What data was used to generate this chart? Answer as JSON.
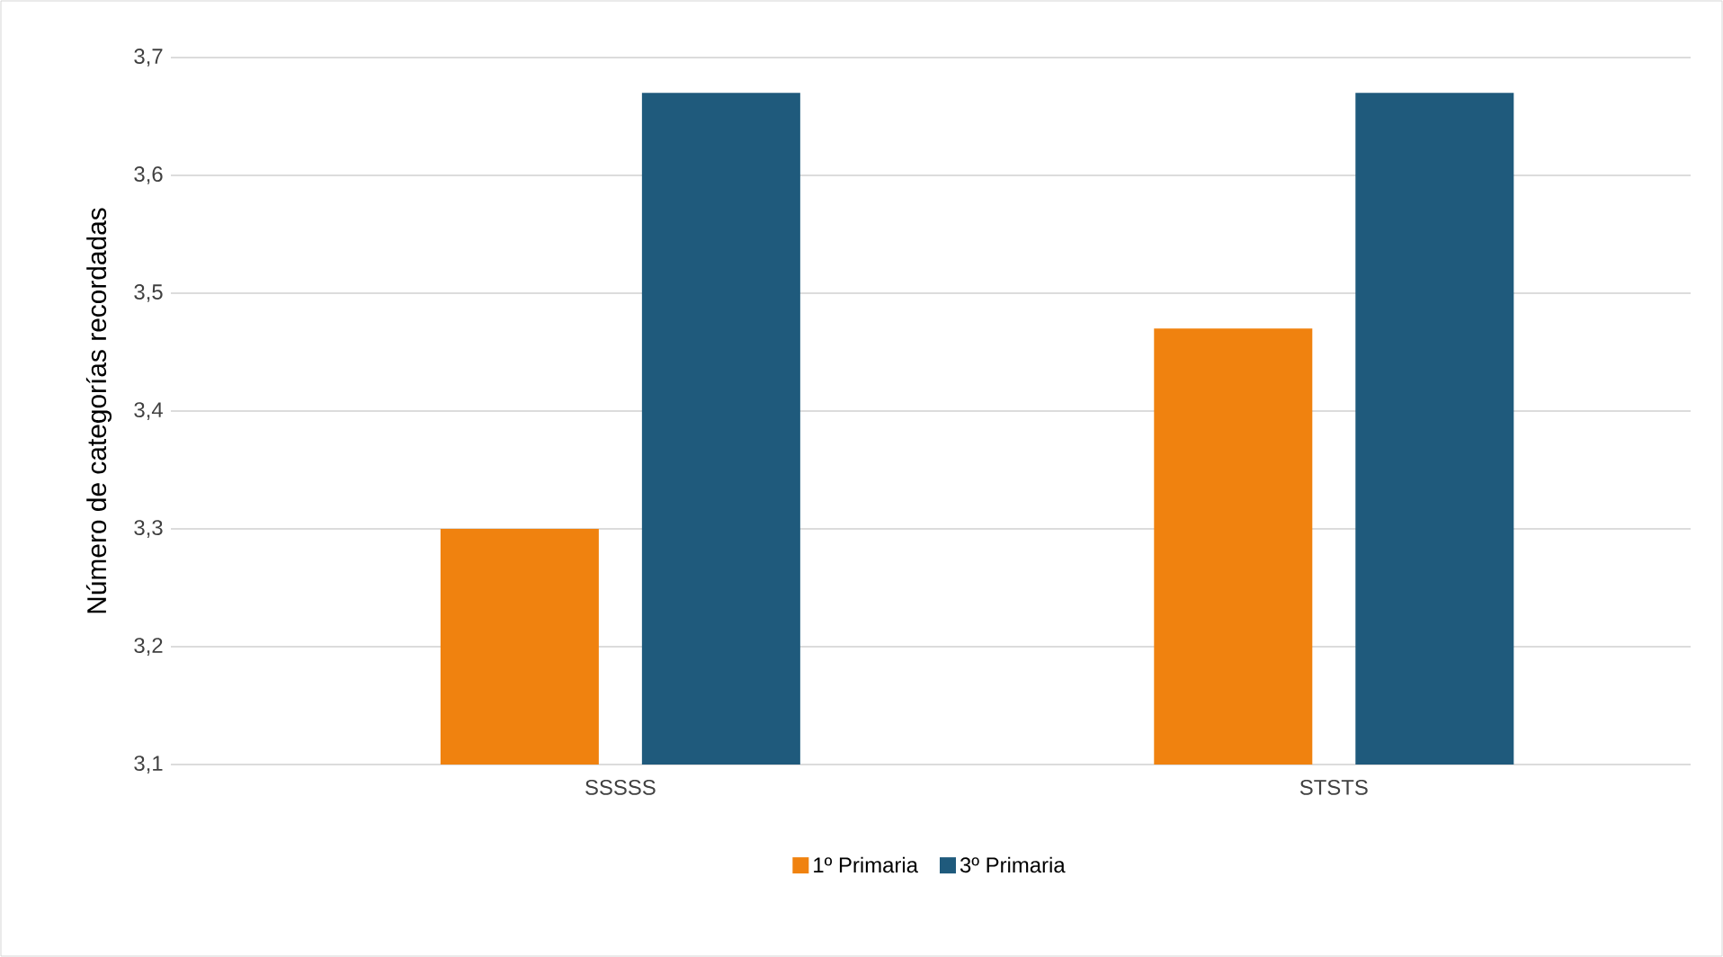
{
  "chart_data": {
    "type": "bar",
    "ylabel": "Número de categorías recordadas",
    "categories": [
      "SSSSS",
      "STSTS"
    ],
    "series": [
      {
        "name": "1º Primaria",
        "color": "#f0820f",
        "values": [
          3.3,
          3.47
        ]
      },
      {
        "name": "3º Primaria",
        "color": "#1f5a7c",
        "values": [
          3.67,
          3.67
        ]
      }
    ],
    "ylim": [
      3.1,
      3.7
    ],
    "yticks": [
      {
        "value": 3.1,
        "label": "3,1"
      },
      {
        "value": 3.2,
        "label": "3,2"
      },
      {
        "value": 3.3,
        "label": "3,3"
      },
      {
        "value": 3.4,
        "label": "3,4"
      },
      {
        "value": 3.5,
        "label": "3,5"
      },
      {
        "value": 3.6,
        "label": "3,6"
      },
      {
        "value": 3.7,
        "label": "3,7"
      }
    ],
    "grid": "y",
    "legend": "bottom"
  }
}
